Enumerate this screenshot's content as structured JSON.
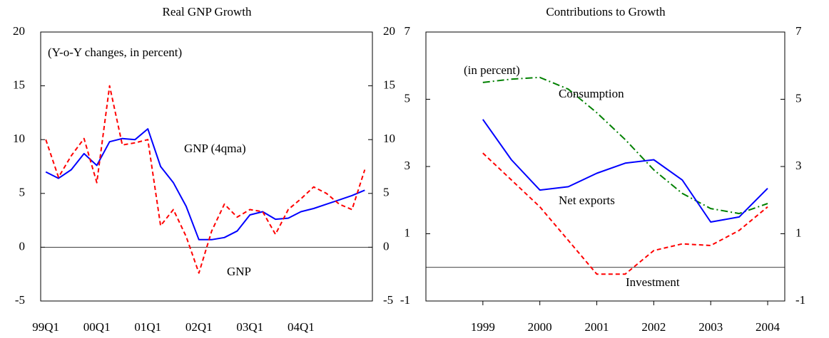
{
  "chart_data": [
    {
      "type": "line",
      "title": "Real GNP Growth",
      "annotation": "(Y-o-Y changes, in percent)",
      "categories": [
        "99Q1",
        null,
        null,
        null,
        "00Q1",
        null,
        null,
        null,
        "01Q1",
        null,
        null,
        null,
        "02Q1",
        null,
        null,
        null,
        "03Q1",
        null,
        null,
        null,
        "04Q1",
        null,
        null,
        null,
        null,
        null
      ],
      "series": [
        {
          "name": "GNP (4qma)",
          "color": "#0000ff",
          "dash": "solid",
          "values": [
            7.0,
            6.4,
            7.2,
            8.7,
            7.6,
            9.8,
            10.1,
            10.0,
            11.0,
            7.5,
            6.0,
            3.8,
            0.7,
            0.7,
            0.9,
            1.5,
            3.0,
            3.3,
            2.6,
            2.7,
            3.3,
            3.6,
            4.0,
            4.4,
            4.8,
            5.3
          ]
        },
        {
          "name": "GNP",
          "color": "#ff0000",
          "dash": "dashed",
          "values": [
            10.0,
            6.5,
            8.5,
            10.1,
            6.0,
            15.0,
            9.5,
            9.7,
            10.0,
            2.0,
            3.5,
            1.0,
            -2.4,
            1.5,
            4.0,
            2.8,
            3.5,
            3.3,
            1.2,
            3.5,
            4.5,
            5.6,
            5.0,
            4.0,
            3.5,
            7.2
          ]
        }
      ],
      "ylim": [
        -5,
        20
      ],
      "yticks": [
        -5,
        0,
        5,
        10,
        15,
        20
      ],
      "y2lim": [
        -5,
        20
      ],
      "y2ticks": [
        -5,
        0,
        5,
        10,
        15,
        20
      ],
      "zero_line": true
    },
    {
      "type": "line",
      "title": "Contributions to Growth",
      "annotation": "(in percent)",
      "x": [
        1999,
        1999.5,
        2000,
        2000.5,
        2001,
        2001.5,
        2002,
        2002.5,
        2003,
        2003.5,
        2004
      ],
      "series": [
        {
          "name": "Consumption",
          "color": "#008000",
          "dash": "dashdot",
          "values": [
            5.5,
            5.6,
            5.65,
            5.3,
            4.6,
            3.8,
            2.9,
            2.2,
            1.75,
            1.6,
            1.9
          ]
        },
        {
          "name": "Net exports",
          "color": "#0000ff",
          "dash": "solid",
          "values": [
            4.4,
            3.2,
            2.3,
            2.4,
            2.8,
            3.1,
            3.2,
            2.6,
            1.35,
            1.5,
            2.35
          ]
        },
        {
          "name": "Investment",
          "color": "#ff0000",
          "dash": "dashed",
          "values": [
            3.4,
            2.6,
            1.8,
            0.8,
            -0.2,
            -0.2,
            0.5,
            0.7,
            0.65,
            1.1,
            1.8
          ]
        }
      ],
      "xlim": [
        1998.0,
        2004.3
      ],
      "xticks": [
        1999,
        2000,
        2001,
        2002,
        2003,
        2004
      ],
      "ylim": [
        -1,
        7
      ],
      "yticks": [
        -1,
        1,
        3,
        5,
        7
      ],
      "y2lim": [
        -1,
        7
      ],
      "y2ticks": [
        -1,
        1,
        3,
        5,
        7
      ],
      "zero_line": true
    }
  ]
}
